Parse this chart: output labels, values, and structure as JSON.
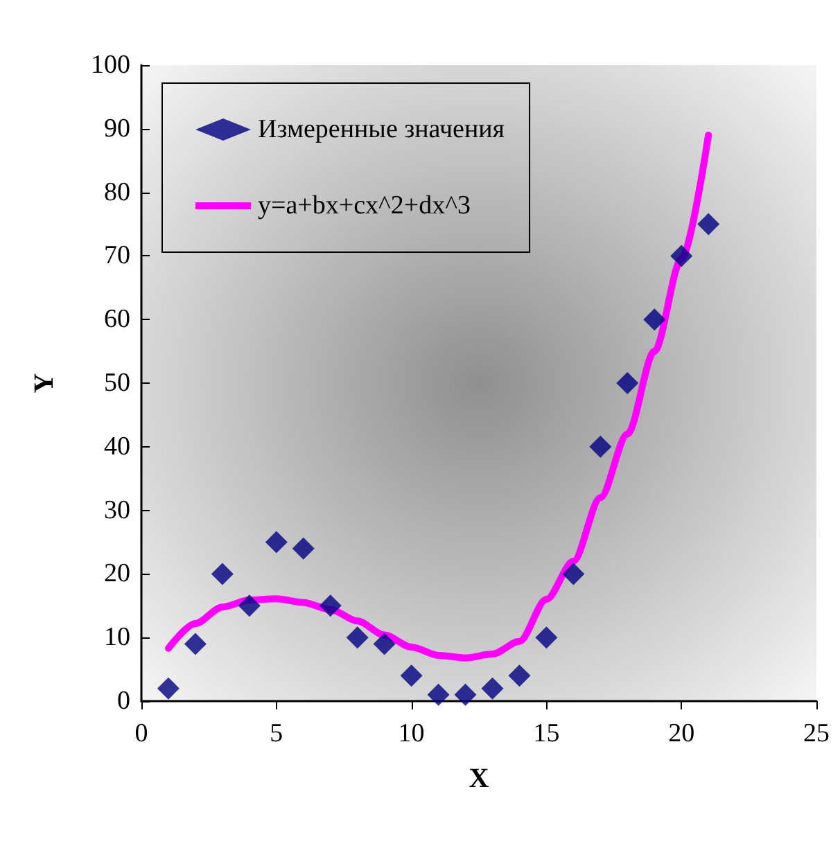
{
  "chart_data": {
    "type": "scatter",
    "xlabel": "X",
    "ylabel": "Y",
    "xlim": [
      0,
      25
    ],
    "xticks": [
      0,
      5,
      10,
      15,
      20,
      25
    ],
    "ylim": [
      0,
      100
    ],
    "yticks": [
      0,
      10,
      20,
      30,
      40,
      50,
      60,
      70,
      80,
      90,
      100
    ],
    "grid": false,
    "legend": "top left",
    "series": [
      {
        "name": "Измеренные значения",
        "marker": "diamond",
        "color": "#000080",
        "x": [
          1,
          2,
          3,
          4,
          5,
          6,
          7,
          8,
          9,
          10,
          11,
          12,
          13,
          14,
          15,
          16,
          17,
          18,
          19,
          20,
          21
        ],
        "values": [
          2,
          9,
          20,
          15,
          25,
          24,
          15,
          10,
          9,
          4,
          1,
          1,
          2,
          4,
          10,
          20,
          40,
          50,
          60,
          70,
          75
        ]
      },
      {
        "name": "y=a+bx+cx^2+dx^3",
        "type": "line",
        "marker": "none",
        "line_style": "solid",
        "color": "#ff00ff",
        "x": [
          1,
          2,
          3,
          4,
          5,
          6,
          7,
          8,
          9,
          10,
          11,
          12,
          13,
          14,
          15,
          16,
          17,
          18,
          19,
          20,
          21
        ],
        "values": [
          8.3,
          12.2,
          14.8,
          15.9,
          16.1,
          15.5,
          14.4,
          12.6,
          10.4,
          8.5,
          7.2,
          6.8,
          7.4,
          9.4,
          16,
          22,
          32,
          42,
          55,
          69.5,
          89
        ]
      }
    ]
  }
}
